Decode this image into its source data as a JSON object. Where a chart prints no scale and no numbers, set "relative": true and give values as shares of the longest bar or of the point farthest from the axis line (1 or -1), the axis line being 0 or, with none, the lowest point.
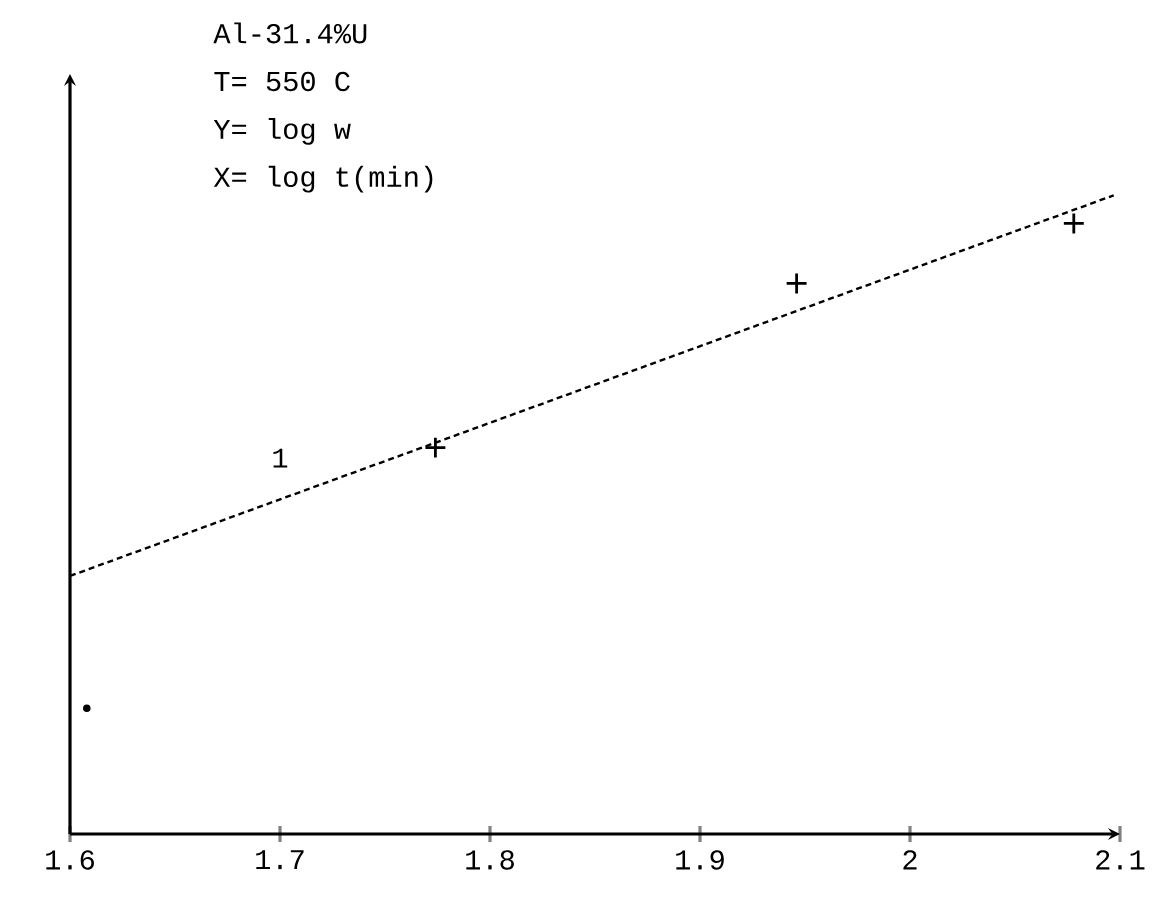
{
  "chart_data": {
    "type": "scatter",
    "title": "Al-31.4%U",
    "annotations": [
      "T= 550 C",
      "Y= log w",
      "X= log t(min)",
      "1"
    ],
    "relative": true,
    "xlim": [
      1.6,
      2.1
    ],
    "xticks": [
      1.6,
      1.7,
      1.8,
      1.9,
      2,
      2.1
    ],
    "series": [
      {
        "marker": "cross",
        "color": "#000000",
        "x": [
          1.774,
          1.946,
          2.078
        ],
        "values": [
          0.605,
          0.862,
          0.956
        ]
      },
      {
        "marker": "circle",
        "color": "#000000",
        "x": [
          1.608
        ],
        "values": [
          0.197
        ]
      },
      {
        "type": "line",
        "line_style": "dotted",
        "marker": "none",
        "color": "#000000",
        "x": [
          1.6,
          2.097
        ],
        "values": [
          0.404,
          1.0
        ]
      }
    ]
  }
}
